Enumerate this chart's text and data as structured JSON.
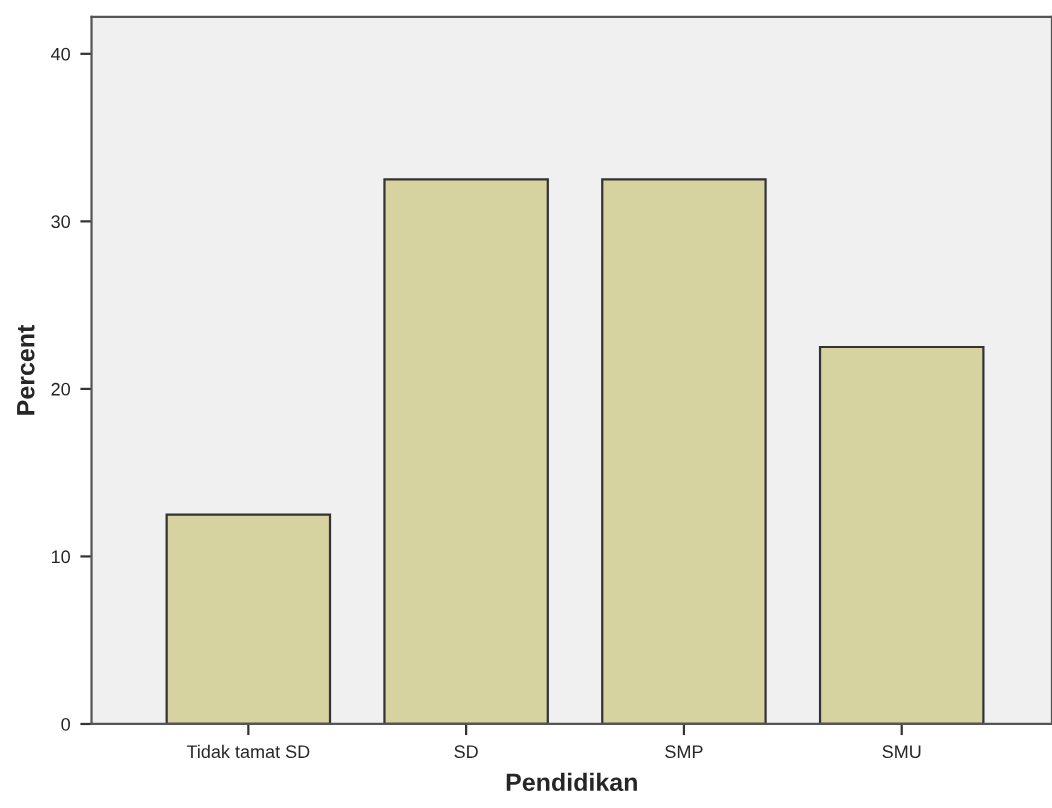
{
  "chart_data": {
    "type": "bar",
    "xlabel": "Pendidikan",
    "ylabel": "Percent",
    "categories": [
      "Tidak tamat SD",
      "SD",
      "SMP",
      "SMU"
    ],
    "values": [
      12.5,
      32.5,
      32.5,
      22.5
    ],
    "color": "#d6d3a0",
    "ylim": [
      0,
      42.2
    ],
    "yticks": [
      0,
      10,
      20,
      30,
      40
    ],
    "grid": false,
    "legend": false
  }
}
